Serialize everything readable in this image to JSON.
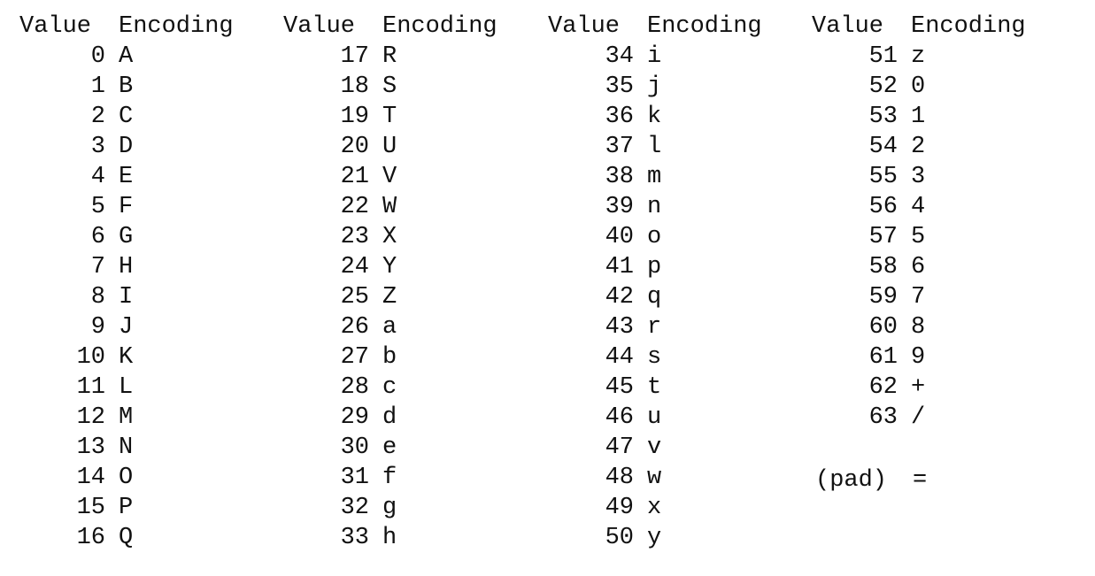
{
  "headers": {
    "value": "Value",
    "encoding": "Encoding"
  },
  "columns": [
    {
      "rows": [
        {
          "value": "0",
          "encoding": "A"
        },
        {
          "value": "1",
          "encoding": "B"
        },
        {
          "value": "2",
          "encoding": "C"
        },
        {
          "value": "3",
          "encoding": "D"
        },
        {
          "value": "4",
          "encoding": "E"
        },
        {
          "value": "5",
          "encoding": "F"
        },
        {
          "value": "6",
          "encoding": "G"
        },
        {
          "value": "7",
          "encoding": "H"
        },
        {
          "value": "8",
          "encoding": "I"
        },
        {
          "value": "9",
          "encoding": "J"
        },
        {
          "value": "10",
          "encoding": "K"
        },
        {
          "value": "11",
          "encoding": "L"
        },
        {
          "value": "12",
          "encoding": "M"
        },
        {
          "value": "13",
          "encoding": "N"
        },
        {
          "value": "14",
          "encoding": "O"
        },
        {
          "value": "15",
          "encoding": "P"
        },
        {
          "value": "16",
          "encoding": "Q"
        }
      ]
    },
    {
      "rows": [
        {
          "value": "17",
          "encoding": "R"
        },
        {
          "value": "18",
          "encoding": "S"
        },
        {
          "value": "19",
          "encoding": "T"
        },
        {
          "value": "20",
          "encoding": "U"
        },
        {
          "value": "21",
          "encoding": "V"
        },
        {
          "value": "22",
          "encoding": "W"
        },
        {
          "value": "23",
          "encoding": "X"
        },
        {
          "value": "24",
          "encoding": "Y"
        },
        {
          "value": "25",
          "encoding": "Z"
        },
        {
          "value": "26",
          "encoding": "a"
        },
        {
          "value": "27",
          "encoding": "b"
        },
        {
          "value": "28",
          "encoding": "c"
        },
        {
          "value": "29",
          "encoding": "d"
        },
        {
          "value": "30",
          "encoding": "e"
        },
        {
          "value": "31",
          "encoding": "f"
        },
        {
          "value": "32",
          "encoding": "g"
        },
        {
          "value": "33",
          "encoding": "h"
        }
      ]
    },
    {
      "rows": [
        {
          "value": "34",
          "encoding": "i"
        },
        {
          "value": "35",
          "encoding": "j"
        },
        {
          "value": "36",
          "encoding": "k"
        },
        {
          "value": "37",
          "encoding": "l"
        },
        {
          "value": "38",
          "encoding": "m"
        },
        {
          "value": "39",
          "encoding": "n"
        },
        {
          "value": "40",
          "encoding": "o"
        },
        {
          "value": "41",
          "encoding": "p"
        },
        {
          "value": "42",
          "encoding": "q"
        },
        {
          "value": "43",
          "encoding": "r"
        },
        {
          "value": "44",
          "encoding": "s"
        },
        {
          "value": "45",
          "encoding": "t"
        },
        {
          "value": "46",
          "encoding": "u"
        },
        {
          "value": "47",
          "encoding": "v"
        },
        {
          "value": "48",
          "encoding": "w"
        },
        {
          "value": "49",
          "encoding": "x"
        },
        {
          "value": "50",
          "encoding": "y"
        }
      ]
    },
    {
      "rows": [
        {
          "value": "51",
          "encoding": "z"
        },
        {
          "value": "52",
          "encoding": "0"
        },
        {
          "value": "53",
          "encoding": "1"
        },
        {
          "value": "54",
          "encoding": "2"
        },
        {
          "value": "55",
          "encoding": "3"
        },
        {
          "value": "56",
          "encoding": "4"
        },
        {
          "value": "57",
          "encoding": "5"
        },
        {
          "value": "58",
          "encoding": "6"
        },
        {
          "value": "59",
          "encoding": "7"
        },
        {
          "value": "60",
          "encoding": "8"
        },
        {
          "value": "61",
          "encoding": "9"
        },
        {
          "value": "62",
          "encoding": "+"
        },
        {
          "value": "63",
          "encoding": "/"
        }
      ]
    }
  ],
  "pad": {
    "label": "(pad)",
    "encoding": "="
  }
}
